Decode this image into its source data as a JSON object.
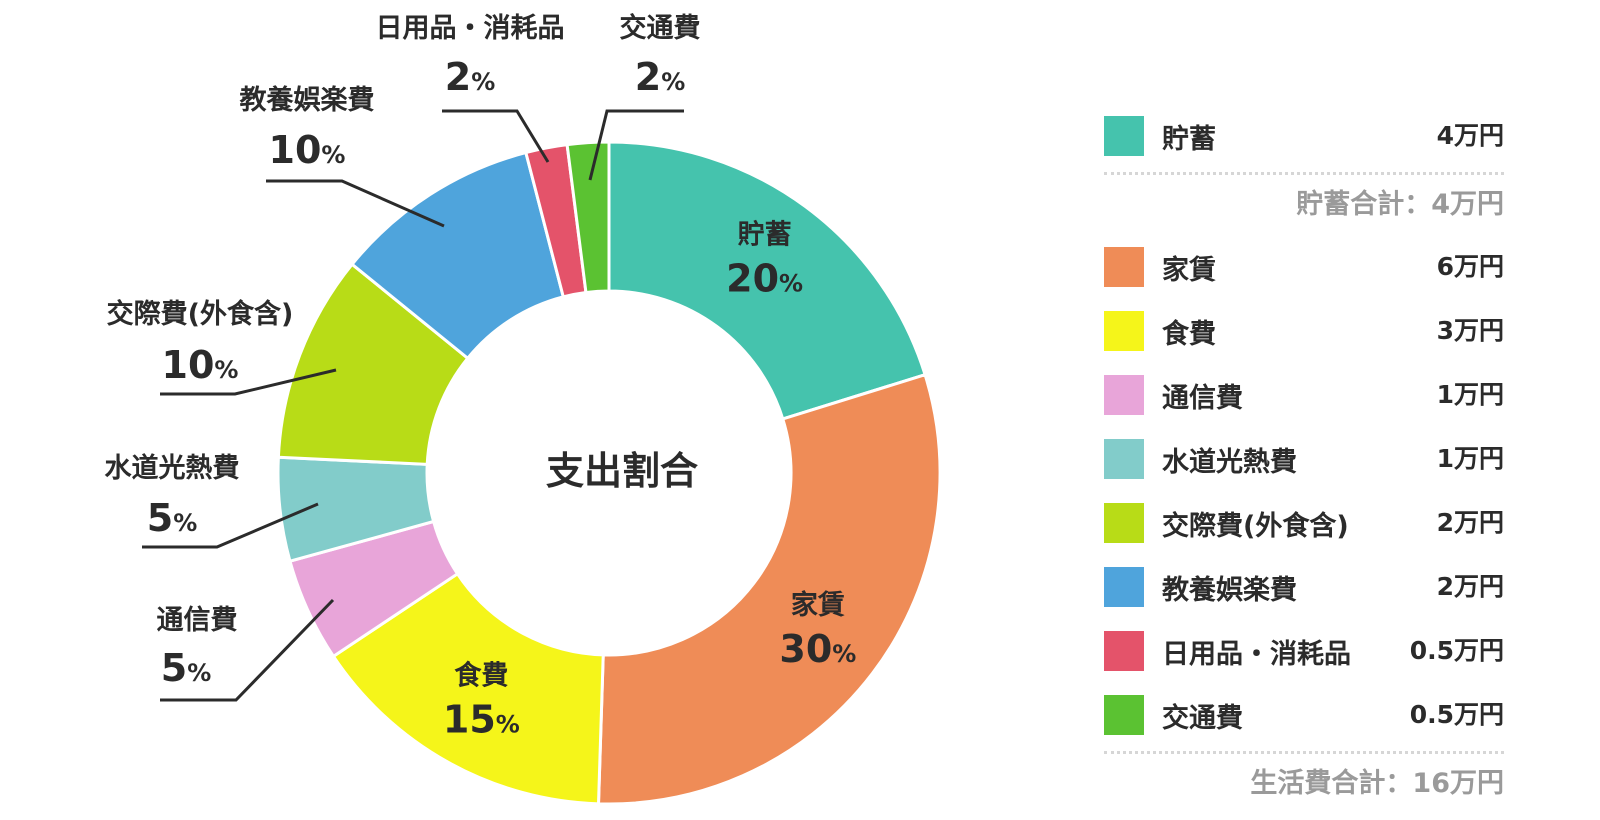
{
  "chart_data": {
    "type": "pie",
    "variant": "donut",
    "center_label": "支出割合",
    "unit_suffix": "%",
    "slices": [
      {
        "label": "貯蓄",
        "value": 20,
        "color": "#45c3ad",
        "label_position": "inside"
      },
      {
        "label": "家賃",
        "value": 30,
        "color": "#ef8c57",
        "label_position": "inside"
      },
      {
        "label": "食費",
        "value": 15,
        "color": "#f5f51a",
        "label_position": "inside"
      },
      {
        "label": "通信費",
        "value": 5,
        "color": "#e8a5d9",
        "label_position": "outside"
      },
      {
        "label": "水道光熱費",
        "value": 5,
        "color": "#82ccca",
        "label_position": "outside"
      },
      {
        "label": "交際費(外食含)",
        "value": 10,
        "color": "#b8dc17",
        "label_position": "outside"
      },
      {
        "label": "教養娯楽費",
        "value": 10,
        "color": "#4fa4dc",
        "label_position": "outside"
      },
      {
        "label": "日用品・消耗品",
        "value": 2,
        "color": "#e4536a",
        "label_position": "outside"
      },
      {
        "label": "交通費",
        "value": 2,
        "color": "#5bc232",
        "label_position": "outside"
      }
    ]
  },
  "legend": {
    "savings_items": [
      {
        "name": "貯蓄",
        "amount": "4万円",
        "color": "#45c3ad"
      }
    ],
    "savings_total": "貯蓄合計：4万円",
    "expense_items": [
      {
        "name": "家賃",
        "amount": "6万円",
        "color": "#ef8c57"
      },
      {
        "name": "食費",
        "amount": "3万円",
        "color": "#f5f51a"
      },
      {
        "name": "通信費",
        "amount": "1万円",
        "color": "#e8a5d9"
      },
      {
        "name": "水道光熱費",
        "amount": "1万円",
        "color": "#82ccca"
      },
      {
        "name": "交際費(外食含)",
        "amount": "2万円",
        "color": "#b8dc17"
      },
      {
        "name": "教養娯楽費",
        "amount": "2万円",
        "color": "#4fa4dc"
      },
      {
        "name": "日用品・消耗品",
        "amount": "0.5万円",
        "color": "#e4536a"
      },
      {
        "name": "交通費",
        "amount": "0.5万円",
        "color": "#5bc232"
      }
    ],
    "living_total": "生活費合計：16万円"
  }
}
